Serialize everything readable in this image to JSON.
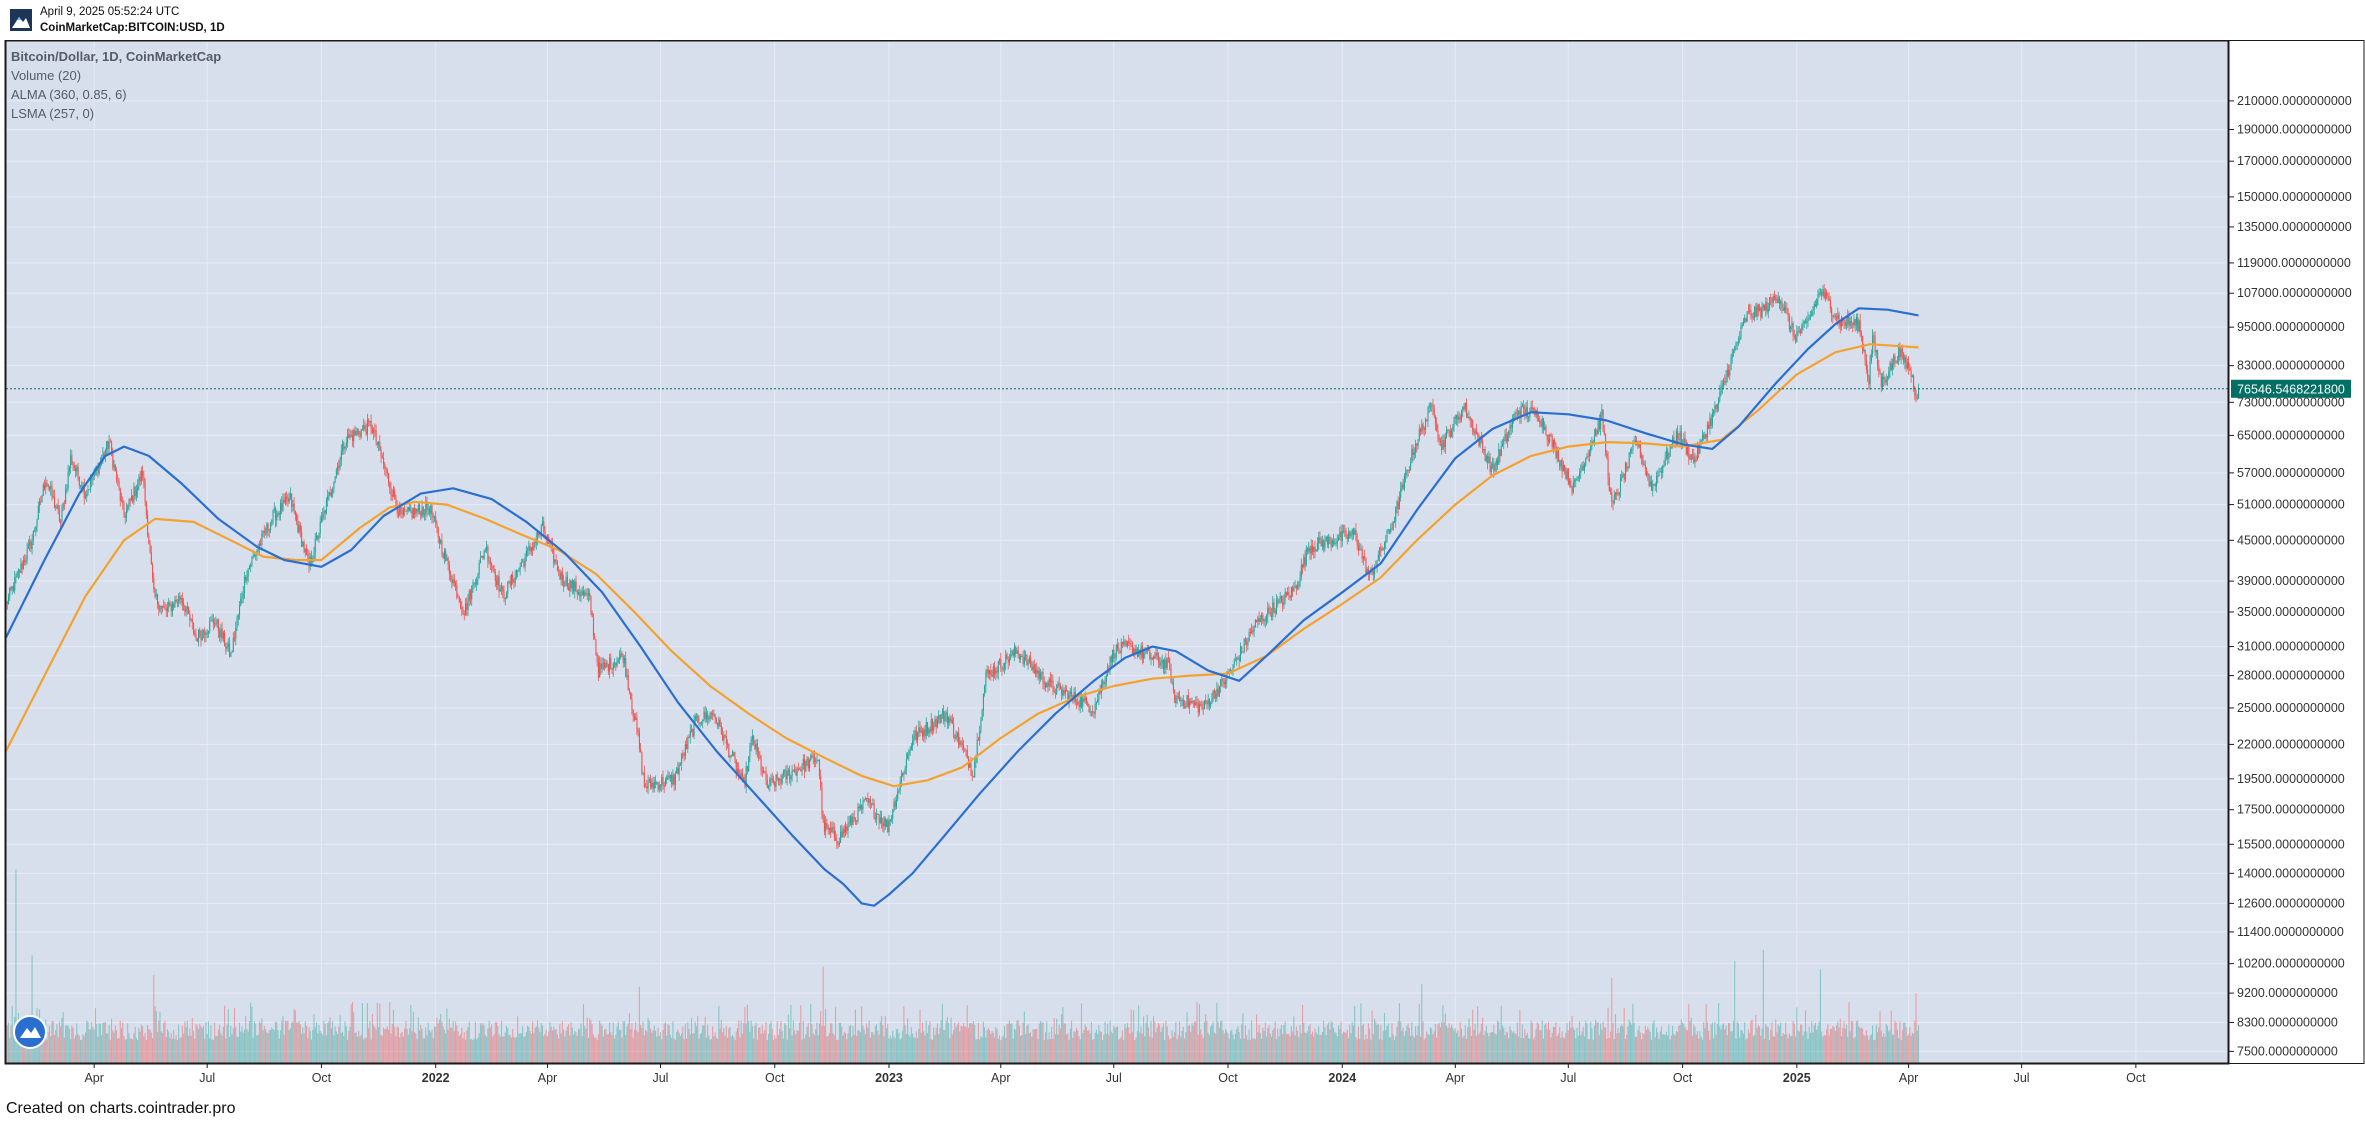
{
  "header": {
    "timestamp": "April 9, 2025 05:52:24 UTC",
    "symbol": "CoinMarketCap:BITCOIN:USD, 1D"
  },
  "legend": {
    "title": "Bitcoin/Dollar, 1D, CoinMarketCap",
    "lines": [
      "Volume (20)",
      "ALMA (360, 0.85, 6)",
      "LSMA (257, 0)"
    ]
  },
  "footer": "Created on charts.cointrader.pro",
  "colors": {
    "background": "#d8dfec",
    "up": "#26a69a",
    "down": "#ef5350",
    "alma": "#f4a12f",
    "lsma": "#2a6fd0",
    "price_line": "#006f64",
    "border": "#1a1a1a",
    "text": "#555b68"
  },
  "chart_data": {
    "type": "candlestick",
    "y_scale": "log",
    "ylim": [
      7500,
      210000
    ],
    "y_ticks": [
      "210000.0000000000",
      "190000.0000000000",
      "170000.0000000000",
      "150000.0000000000",
      "135000.0000000000",
      "119000.0000000000",
      "107000.0000000000",
      "95000.0000000000",
      "83000.0000000000",
      "73000.0000000000",
      "65000.0000000000",
      "57000.0000000000",
      "51000.0000000000",
      "45000.0000000000",
      "39000.0000000000",
      "35000.0000000000",
      "31000.0000000000",
      "28000.0000000000",
      "25000.0000000000",
      "22000.0000000000",
      "19500.0000000000",
      "17500.0000000000",
      "15500.0000000000",
      "14000.0000000000",
      "12600.0000000000",
      "11400.0000000000",
      "10200.0000000000",
      "9200.0000000000",
      "8300.0000000000",
      "7500.0000000000"
    ],
    "x_ticks": [
      {
        "label": "Apr",
        "date": "2021-04-01"
      },
      {
        "label": "Jul",
        "date": "2021-07-01"
      },
      {
        "label": "Oct",
        "date": "2021-10-01"
      },
      {
        "label": "2022",
        "date": "2022-01-01",
        "bold": true
      },
      {
        "label": "Apr",
        "date": "2022-04-01"
      },
      {
        "label": "Jul",
        "date": "2022-07-01"
      },
      {
        "label": "Oct",
        "date": "2022-10-01"
      },
      {
        "label": "2023",
        "date": "2023-01-01",
        "bold": true
      },
      {
        "label": "Apr",
        "date": "2023-04-01"
      },
      {
        "label": "Jul",
        "date": "2023-07-01"
      },
      {
        "label": "Oct",
        "date": "2023-10-01"
      },
      {
        "label": "2024",
        "date": "2024-01-01",
        "bold": true
      },
      {
        "label": "Apr",
        "date": "2024-04-01"
      },
      {
        "label": "Jul",
        "date": "2024-07-01"
      },
      {
        "label": "Oct",
        "date": "2024-10-01"
      },
      {
        "label": "2025",
        "date": "2025-01-01",
        "bold": true
      },
      {
        "label": "Apr",
        "date": "2025-04-01"
      },
      {
        "label": "Jul",
        "date": "2025-07-01"
      },
      {
        "label": "Oct",
        "date": "2025-10-01"
      }
    ],
    "x_range": [
      "2021-01-20",
      "2025-12-15"
    ],
    "last_price": 76546.54682218,
    "last_price_label": "76546.5468221800",
    "price_path": [
      [
        "2021-01-20",
        36000
      ],
      [
        "2021-02-10",
        45000
      ],
      [
        "2021-02-21",
        56000
      ],
      [
        "2021-03-05",
        48000
      ],
      [
        "2021-03-13",
        60000
      ],
      [
        "2021-03-25",
        53000
      ],
      [
        "2021-04-13",
        63500
      ],
      [
        "2021-04-25",
        49000
      ],
      [
        "2021-05-10",
        57000
      ],
      [
        "2021-05-19",
        37000
      ],
      [
        "2021-05-28",
        35000
      ],
      [
        "2021-06-10",
        37000
      ],
      [
        "2021-06-22",
        32000
      ],
      [
        "2021-07-07",
        34000
      ],
      [
        "2021-07-20",
        30000
      ],
      [
        "2021-08-01",
        40000
      ],
      [
        "2021-08-23",
        49000
      ],
      [
        "2021-09-06",
        52000
      ],
      [
        "2021-09-21",
        41000
      ],
      [
        "2021-10-01",
        48000
      ],
      [
        "2021-10-20",
        64000
      ],
      [
        "2021-11-10",
        67500
      ],
      [
        "2021-11-26",
        54000
      ],
      [
        "2021-12-04",
        49000
      ],
      [
        "2021-12-27",
        50500
      ],
      [
        "2022-01-10",
        41500
      ],
      [
        "2022-01-24",
        35000
      ],
      [
        "2022-02-10",
        44000
      ],
      [
        "2022-02-24",
        37000
      ],
      [
        "2022-03-28",
        47000
      ],
      [
        "2022-04-12",
        39500
      ],
      [
        "2022-05-05",
        36500
      ],
      [
        "2022-05-12",
        28500
      ],
      [
        "2022-06-01",
        30000
      ],
      [
        "2022-06-13",
        22500
      ],
      [
        "2022-06-18",
        19000
      ],
      [
        "2022-07-12",
        19500
      ],
      [
        "2022-07-30",
        24000
      ],
      [
        "2022-08-13",
        24500
      ],
      [
        "2022-09-06",
        19000
      ],
      [
        "2022-09-13",
        22500
      ],
      [
        "2022-09-25",
        19000
      ],
      [
        "2022-10-25",
        20500
      ],
      [
        "2022-11-05",
        21000
      ],
      [
        "2022-11-09",
        16500
      ],
      [
        "2022-11-21",
        15800
      ],
      [
        "2022-12-14",
        18000
      ],
      [
        "2022-12-31",
        16500
      ],
      [
        "2023-01-20",
        22500
      ],
      [
        "2023-02-16",
        24500
      ],
      [
        "2023-03-10",
        20000
      ],
      [
        "2023-03-20",
        28000
      ],
      [
        "2023-04-14",
        30500
      ],
      [
        "2023-05-11",
        27000
      ],
      [
        "2023-06-15",
        25000
      ],
      [
        "2023-07-01",
        30500
      ],
      [
        "2023-07-13",
        31000
      ],
      [
        "2023-08-15",
        29000
      ],
      [
        "2023-08-18",
        26000
      ],
      [
        "2023-09-11",
        25000
      ],
      [
        "2023-10-01",
        28000
      ],
      [
        "2023-10-23",
        33500
      ],
      [
        "2023-11-24",
        38000
      ],
      [
        "2023-12-05",
        44000
      ],
      [
        "2024-01-11",
        46000
      ],
      [
        "2024-01-23",
        39500
      ],
      [
        "2024-02-10",
        47500
      ],
      [
        "2024-02-28",
        62500
      ],
      [
        "2024-03-14",
        73000
      ],
      [
        "2024-03-20",
        62500
      ],
      [
        "2024-04-08",
        72000
      ],
      [
        "2024-05-01",
        57500
      ],
      [
        "2024-05-21",
        71000
      ],
      [
        "2024-06-07",
        70000
      ],
      [
        "2024-07-05",
        54000
      ],
      [
        "2024-07-28",
        69500
      ],
      [
        "2024-08-05",
        50500
      ],
      [
        "2024-08-25",
        64000
      ],
      [
        "2024-09-06",
        54000
      ],
      [
        "2024-09-27",
        65500
      ],
      [
        "2024-10-10",
        59500
      ],
      [
        "2024-10-29",
        72500
      ],
      [
        "2024-11-12",
        88000
      ],
      [
        "2024-11-22",
        99000
      ],
      [
        "2024-12-05",
        101000
      ],
      [
        "2024-12-17",
        106500
      ],
      [
        "2024-12-30",
        92000
      ],
      [
        "2025-01-08",
        95000
      ],
      [
        "2025-01-20",
        108000
      ],
      [
        "2025-02-05",
        97000
      ],
      [
        "2025-02-20",
        96000
      ],
      [
        "2025-02-28",
        79000
      ],
      [
        "2025-03-03",
        92000
      ],
      [
        "2025-03-10",
        78000
      ],
      [
        "2025-03-24",
        87000
      ],
      [
        "2025-04-02",
        82000
      ],
      [
        "2025-04-07",
        75000
      ],
      [
        "2025-04-09",
        76546
      ]
    ],
    "series": [
      {
        "name": "ALMA (360, 0.85, 6)",
        "color": "#f4a12f",
        "points": [
          [
            "2021-01-20",
            21500
          ],
          [
            "2021-02-20",
            28000
          ],
          [
            "2021-03-25",
            37000
          ],
          [
            "2021-04-25",
            45000
          ],
          [
            "2021-05-20",
            48500
          ],
          [
            "2021-06-20",
            48000
          ],
          [
            "2021-07-20",
            45000
          ],
          [
            "2021-08-15",
            42500
          ],
          [
            "2021-09-10",
            42000
          ],
          [
            "2021-10-01",
            42000
          ],
          [
            "2021-11-01",
            47000
          ],
          [
            "2021-11-25",
            50500
          ],
          [
            "2021-12-15",
            51500
          ],
          [
            "2022-01-10",
            51000
          ],
          [
            "2022-02-10",
            48500
          ],
          [
            "2022-03-10",
            46000
          ],
          [
            "2022-04-10",
            43500
          ],
          [
            "2022-05-10",
            40000
          ],
          [
            "2022-06-10",
            35000
          ],
          [
            "2022-07-10",
            30500
          ],
          [
            "2022-08-10",
            27000
          ],
          [
            "2022-09-10",
            24500
          ],
          [
            "2022-10-10",
            22500
          ],
          [
            "2022-11-10",
            21000
          ],
          [
            "2022-12-10",
            19700
          ],
          [
            "2023-01-05",
            19000
          ],
          [
            "2023-02-01",
            19400
          ],
          [
            "2023-03-01",
            20300
          ],
          [
            "2023-04-01",
            22500
          ],
          [
            "2023-05-01",
            24500
          ],
          [
            "2023-06-01",
            26000
          ],
          [
            "2023-07-01",
            27000
          ],
          [
            "2023-08-01",
            27700
          ],
          [
            "2023-09-01",
            28000
          ],
          [
            "2023-10-01",
            28200
          ],
          [
            "2023-11-01",
            30000
          ],
          [
            "2023-12-01",
            33000
          ],
          [
            "2024-01-01",
            36000
          ],
          [
            "2024-02-01",
            39500
          ],
          [
            "2024-03-01",
            45000
          ],
          [
            "2024-04-01",
            51000
          ],
          [
            "2024-05-01",
            56500
          ],
          [
            "2024-06-01",
            60500
          ],
          [
            "2024-07-01",
            62500
          ],
          [
            "2024-08-01",
            63500
          ],
          [
            "2024-09-01",
            63200
          ],
          [
            "2024-10-01",
            62500
          ],
          [
            "2024-11-01",
            64000
          ],
          [
            "2024-12-01",
            71000
          ],
          [
            "2025-01-01",
            80500
          ],
          [
            "2025-02-01",
            87000
          ],
          [
            "2025-03-01",
            89500
          ],
          [
            "2025-04-09",
            88500
          ]
        ]
      },
      {
        "name": "LSMA (257, 0)",
        "color": "#2a6fd0",
        "points": [
          [
            "2021-01-20",
            32000
          ],
          [
            "2021-02-20",
            42000
          ],
          [
            "2021-03-20",
            53000
          ],
          [
            "2021-04-10",
            60500
          ],
          [
            "2021-04-25",
            62500
          ],
          [
            "2021-05-15",
            60500
          ],
          [
            "2021-06-10",
            55000
          ],
          [
            "2021-07-10",
            48500
          ],
          [
            "2021-08-10",
            44000
          ],
          [
            "2021-09-01",
            42000
          ],
          [
            "2021-10-01",
            41000
          ],
          [
            "2021-10-25",
            43500
          ],
          [
            "2021-11-20",
            49000
          ],
          [
            "2021-12-20",
            53000
          ],
          [
            "2022-01-15",
            54000
          ],
          [
            "2022-02-15",
            52000
          ],
          [
            "2022-03-15",
            48000
          ],
          [
            "2022-04-15",
            43000
          ],
          [
            "2022-05-15",
            37500
          ],
          [
            "2022-06-15",
            31000
          ],
          [
            "2022-07-15",
            25500
          ],
          [
            "2022-08-15",
            21500
          ],
          [
            "2022-09-15",
            18500
          ],
          [
            "2022-10-15",
            16000
          ],
          [
            "2022-11-10",
            14200
          ],
          [
            "2022-11-25",
            13500
          ],
          [
            "2022-12-10",
            12600
          ],
          [
            "2022-12-20",
            12500
          ],
          [
            "2023-01-01",
            13000
          ],
          [
            "2023-01-20",
            14000
          ],
          [
            "2023-02-15",
            16000
          ],
          [
            "2023-03-15",
            18500
          ],
          [
            "2023-04-15",
            21500
          ],
          [
            "2023-05-15",
            24500
          ],
          [
            "2023-06-15",
            27500
          ],
          [
            "2023-07-10",
            29800
          ],
          [
            "2023-08-01",
            31000
          ],
          [
            "2023-08-20",
            30500
          ],
          [
            "2023-09-15",
            28500
          ],
          [
            "2023-10-10",
            27500
          ],
          [
            "2023-11-01",
            30000
          ],
          [
            "2023-12-01",
            34000
          ],
          [
            "2024-01-01",
            37500
          ],
          [
            "2024-02-01",
            41500
          ],
          [
            "2024-03-01",
            50000
          ],
          [
            "2024-04-01",
            60000
          ],
          [
            "2024-05-01",
            66500
          ],
          [
            "2024-06-01",
            70500
          ],
          [
            "2024-07-01",
            70000
          ],
          [
            "2024-08-01",
            68500
          ],
          [
            "2024-09-01",
            65500
          ],
          [
            "2024-10-01",
            63000
          ],
          [
            "2024-10-25",
            62000
          ],
          [
            "2024-11-15",
            67000
          ],
          [
            "2024-12-15",
            78000
          ],
          [
            "2025-01-10",
            88000
          ],
          [
            "2025-02-01",
            96000
          ],
          [
            "2025-02-20",
            101500
          ],
          [
            "2025-03-15",
            101000
          ],
          [
            "2025-04-09",
            99000
          ]
        ]
      }
    ],
    "volume": {
      "baseline_value": 7500,
      "typical_range": [
        7800,
        8500
      ],
      "spikes": [
        {
          "date": "2021-01-28",
          "value": 14200
        },
        {
          "date": "2021-02-10",
          "value": 10500
        },
        {
          "date": "2021-05-19",
          "value": 9800
        },
        {
          "date": "2022-06-14",
          "value": 9400
        },
        {
          "date": "2022-11-09",
          "value": 10100
        },
        {
          "date": "2024-03-05",
          "value": 9500
        },
        {
          "date": "2024-08-05",
          "value": 9700
        },
        {
          "date": "2024-11-12",
          "value": 10300
        },
        {
          "date": "2024-12-05",
          "value": 10700
        },
        {
          "date": "2025-01-20",
          "value": 10000
        },
        {
          "date": "2025-04-07",
          "value": 9200
        }
      ]
    }
  }
}
